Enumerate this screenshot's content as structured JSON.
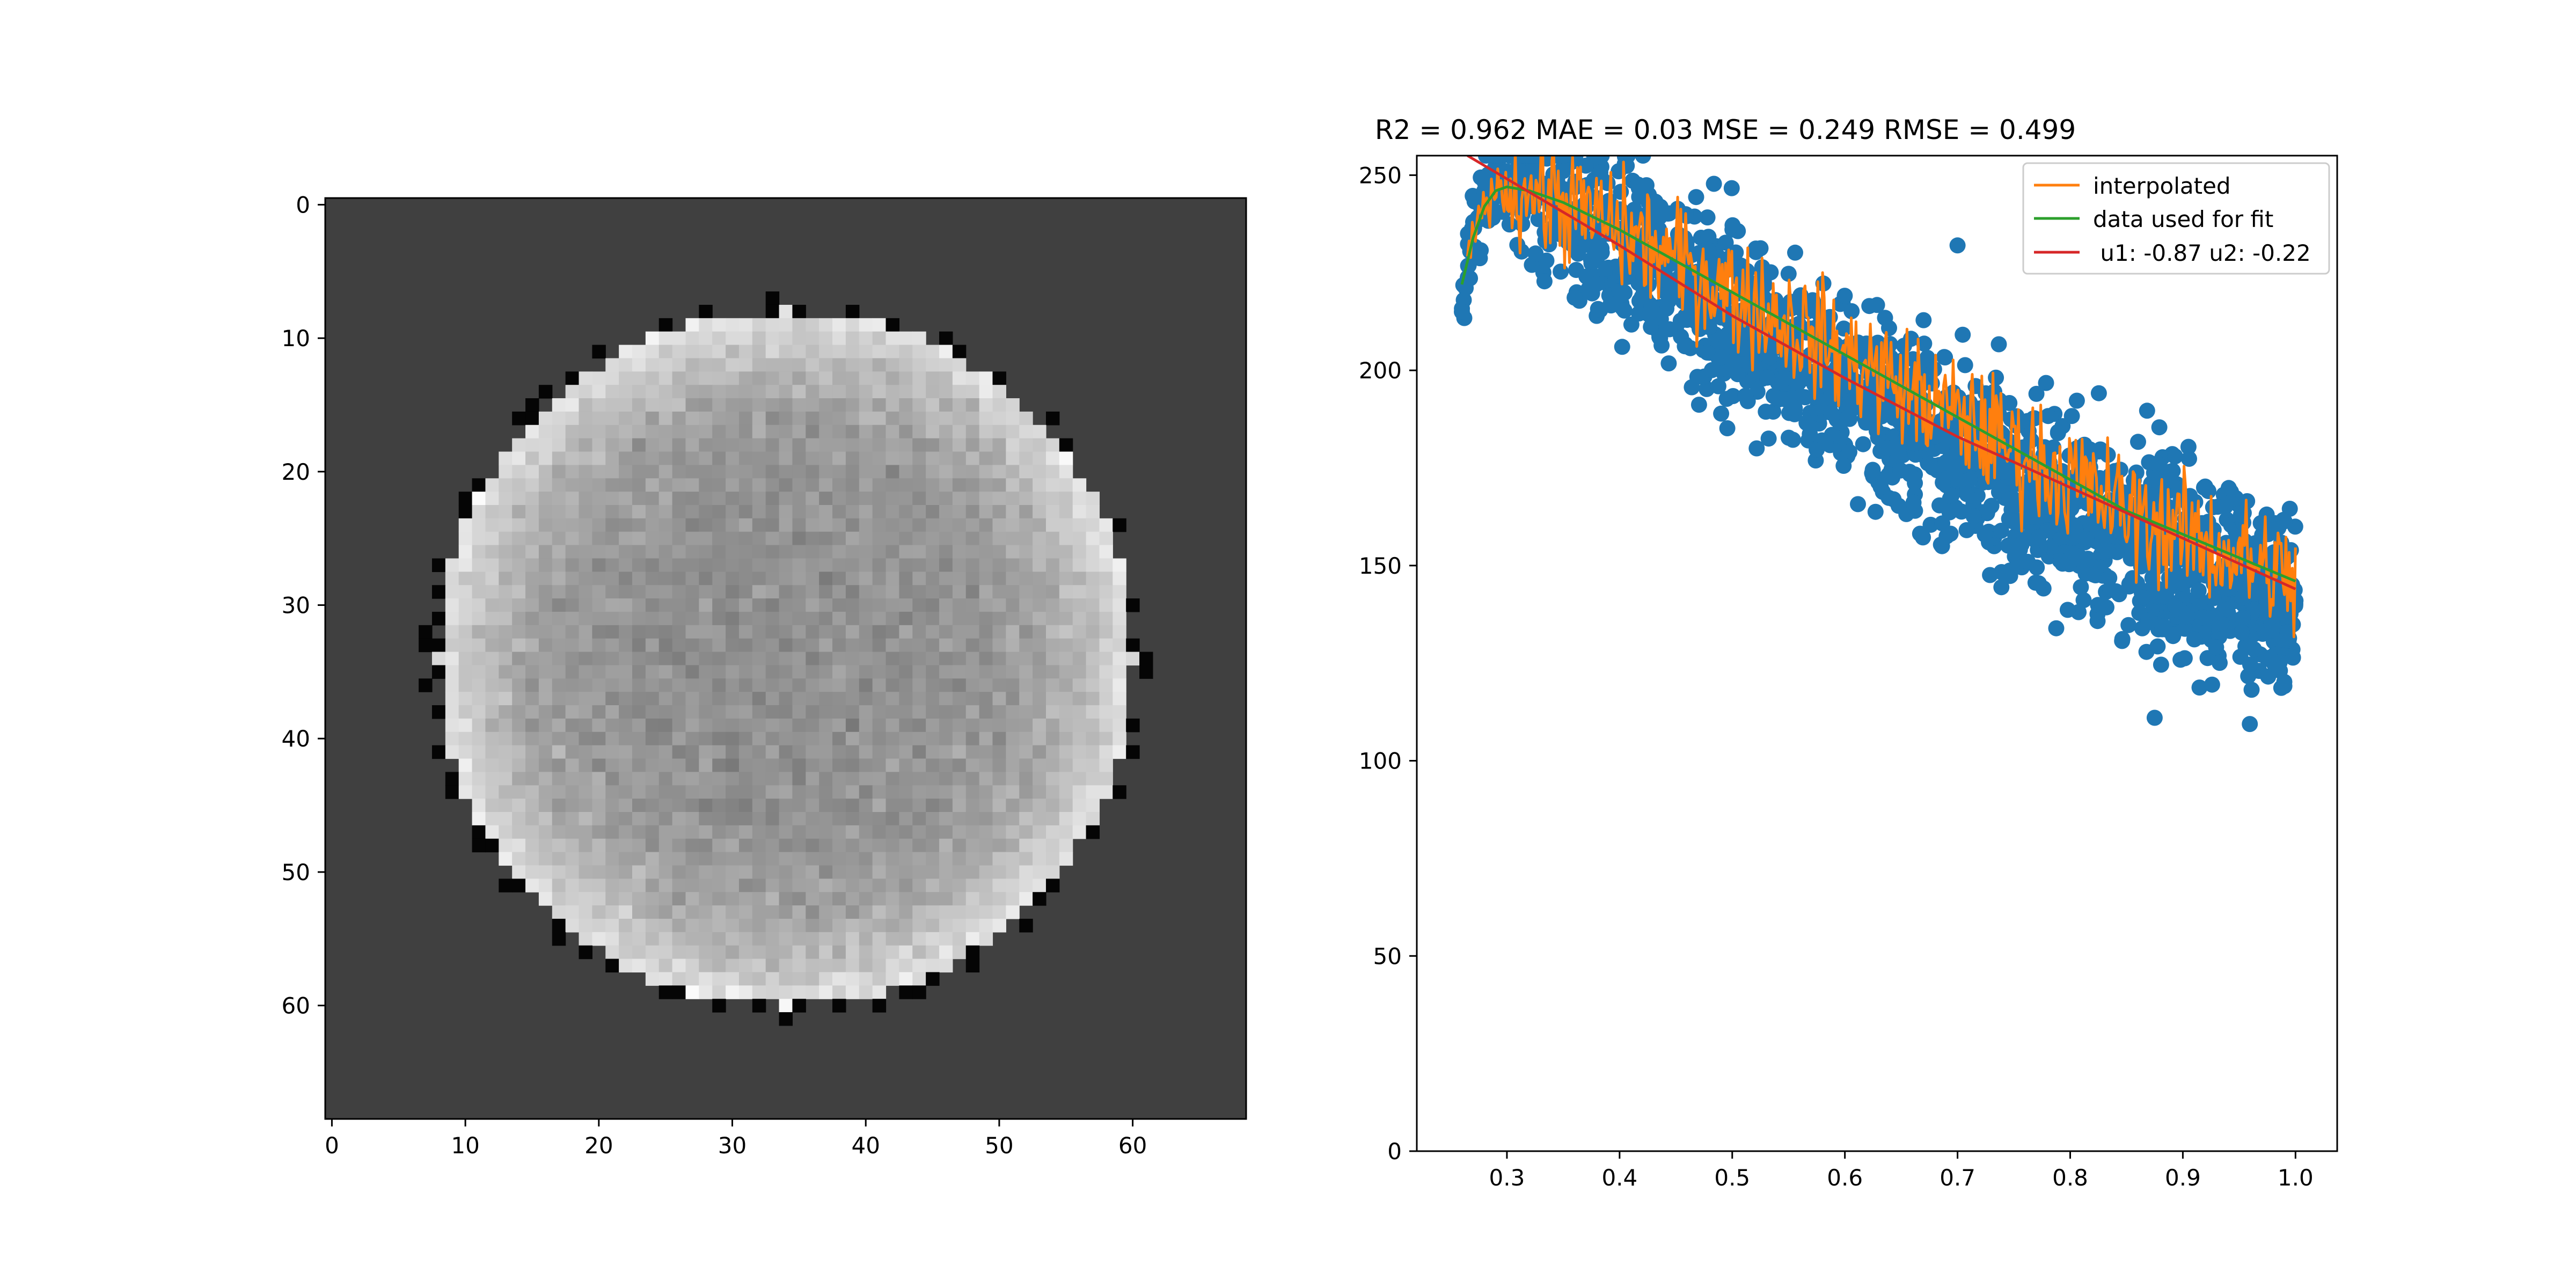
{
  "chart_data": [
    {
      "type": "heatmap",
      "title": "",
      "xlabel": "",
      "ylabel": "",
      "xlim": [
        -0.5,
        68.5
      ],
      "ylim": [
        68.5,
        -0.5
      ],
      "xticks": [
        0,
        10,
        20,
        30,
        40,
        50,
        60
      ],
      "yticks": [
        0,
        10,
        20,
        30,
        40,
        50,
        60
      ],
      "colormap": "gray",
      "background_value_color": "#404040",
      "disk": {
        "center_x": 34,
        "center_y": 34,
        "radius": 26.5
      }
    },
    {
      "type": "scatter",
      "title": "R2 = 0.962 MAE = 0.03 MSE = 0.249 RMSE = 0.499",
      "xlabel": "",
      "ylabel": "",
      "xlim": [
        0.22,
        1.037
      ],
      "ylim": [
        0,
        255
      ],
      "xticks": [
        0.3,
        0.4,
        0.5,
        0.6,
        0.7,
        0.8,
        0.9,
        1.0
      ],
      "xtick_labels": [
        "0.3",
        "0.4",
        "0.5",
        "0.6",
        "0.7",
        "0.8",
        "0.9",
        "1.0"
      ],
      "yticks": [
        0,
        50,
        100,
        150,
        200,
        250
      ],
      "legend_placement": "top-right",
      "series": [
        {
          "kind": "scatter",
          "color": "#1f77b4",
          "x": [
            0.26,
            0.27,
            0.28,
            0.29,
            0.3,
            0.31,
            0.32,
            0.33,
            0.34,
            0.35,
            0.36,
            0.37,
            0.38,
            0.39,
            0.4,
            0.42,
            0.44,
            0.46,
            0.48,
            0.5,
            0.52,
            0.54,
            0.56,
            0.58,
            0.6,
            0.62,
            0.64,
            0.66,
            0.68,
            0.7,
            0.72,
            0.74,
            0.76,
            0.78,
            0.8,
            0.82,
            0.84,
            0.86,
            0.88,
            0.9,
            0.92,
            0.94,
            0.96,
            0.98,
            1.0,
            0.875,
            0.7,
            0.35
          ],
          "y": [
            215,
            238,
            246,
            250,
            251,
            250,
            249,
            247,
            245,
            243,
            241,
            239,
            237,
            235,
            233,
            229,
            225,
            221,
            217,
            213,
            210,
            206,
            203,
            199,
            196,
            193,
            190,
            186,
            183,
            180,
            177,
            174,
            171,
            168,
            165,
            162,
            160,
            157,
            154,
            152,
            149,
            147,
            145,
            143,
            141,
            111,
            232,
            255
          ],
          "spread": 17
        },
        {
          "kind": "line",
          "name": "interpolated",
          "color": "#ff7f0e"
        },
        {
          "kind": "line",
          "name": "data used for fit",
          "color": "#2ca02c",
          "x": [
            0.26,
            0.27,
            0.28,
            0.29,
            0.3,
            0.32,
            0.35,
            0.4,
            0.45,
            0.5,
            0.55,
            0.6,
            0.65,
            0.7,
            0.75,
            0.8,
            0.85,
            0.9,
            0.95,
            1.0
          ],
          "y": [
            222,
            234,
            242,
            246,
            247,
            246,
            243,
            236,
            228,
            220,
            212,
            204,
            196,
            188,
            180,
            172,
            164,
            158,
            152,
            146
          ]
        },
        {
          "kind": "line",
          "name": " u1: -0.87 u2: -0.22",
          "color": "#d62728",
          "x": [
            0.265,
            0.4,
            0.5,
            0.6,
            0.7,
            0.8,
            0.9,
            1.0
          ],
          "y": [
            255,
            232,
            214,
            198,
            183,
            170,
            157,
            144
          ]
        }
      ]
    }
  ]
}
